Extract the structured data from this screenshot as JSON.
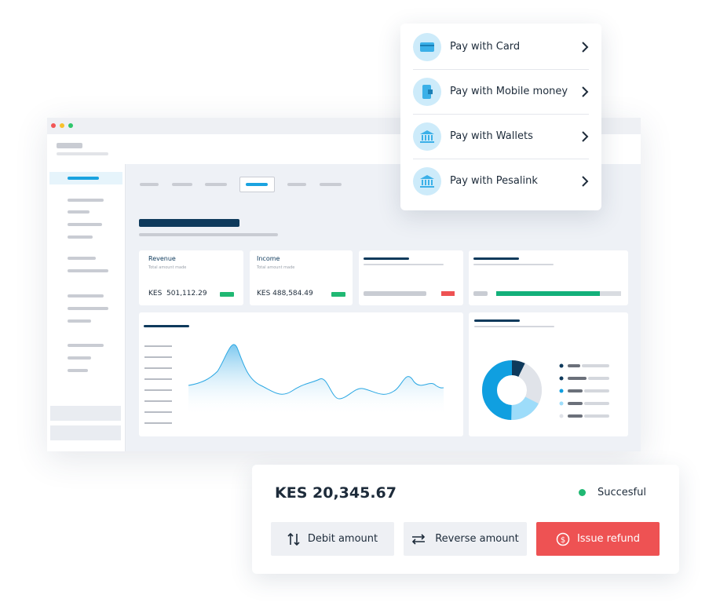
{
  "payment_menu": {
    "options": [
      "Pay with Card",
      "Pay with Mobile money",
      "Pay with Wallets",
      "Pay with Pesalink"
    ]
  },
  "dashboard": {
    "cards": [
      {
        "title": "Revenue",
        "subtitle": "Total amount made",
        "amount": "KES  501,112.29"
      },
      {
        "title": "Income",
        "subtitle": "Total amount made",
        "amount": "KES 488,584.49"
      }
    ]
  },
  "transaction": {
    "amount": "KES 20,345.67",
    "status": "Succesful",
    "actions": [
      "Debit amount",
      "Reverse amount",
      "Issue refund"
    ]
  }
}
